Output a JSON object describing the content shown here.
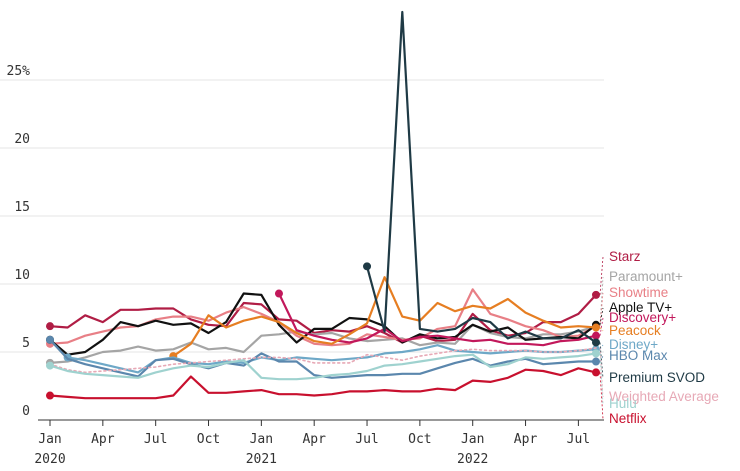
{
  "chart_data": {
    "type": "line",
    "title": "",
    "xlabel": "",
    "ylabel": "",
    "ylim": [
      0,
      30
    ],
    "y_ticks": [
      {
        "value": 0,
        "label": "0"
      },
      {
        "value": 5,
        "label": "5"
      },
      {
        "value": 10,
        "label": "10"
      },
      {
        "value": 15,
        "label": "15"
      },
      {
        "value": 20,
        "label": "20"
      },
      {
        "value": 25,
        "label": "25%"
      }
    ],
    "x_ticks": [
      {
        "index": 0,
        "label": "Jan",
        "year": "2020"
      },
      {
        "index": 3,
        "label": "Apr",
        "year": ""
      },
      {
        "index": 6,
        "label": "Jul",
        "year": ""
      },
      {
        "index": 9,
        "label": "Oct",
        "year": ""
      },
      {
        "index": 12,
        "label": "Jan",
        "year": "2021"
      },
      {
        "index": 15,
        "label": "Apr",
        "year": ""
      },
      {
        "index": 18,
        "label": "Jul",
        "year": ""
      },
      {
        "index": 21,
        "label": "Oct",
        "year": ""
      },
      {
        "index": 24,
        "label": "Jan",
        "year": "2022"
      },
      {
        "index": 27,
        "label": "Apr",
        "year": ""
      },
      {
        "index": 30,
        "label": "Jul",
        "year": ""
      }
    ],
    "x": [
      "Jan 2020",
      "Feb 2020",
      "Mar 2020",
      "Apr 2020",
      "May 2020",
      "Jun 2020",
      "Jul 2020",
      "Aug 2020",
      "Sep 2020",
      "Oct 2020",
      "Nov 2020",
      "Dec 2020",
      "Jan 2021",
      "Feb 2021",
      "Mar 2021",
      "Apr 2021",
      "May 2021",
      "Jun 2021",
      "Jul 2021",
      "Aug 2021",
      "Sep 2021",
      "Oct 2021",
      "Nov 2021",
      "Dec 2021",
      "Jan 2022",
      "Feb 2022",
      "Mar 2022",
      "Apr 2022",
      "May 2022",
      "Jun 2022",
      "Jul 2022",
      "Aug 2022"
    ],
    "grid": "horizontal",
    "legend": "right",
    "series": [
      {
        "name": "Starz",
        "color": "#b01d45",
        "dashed": false,
        "values": [
          6.9,
          6.8,
          7.7,
          7.2,
          8.1,
          8.1,
          8.2,
          8.2,
          7.4,
          7.0,
          6.9,
          8.6,
          8.5,
          7.4,
          7.3,
          6.4,
          6.6,
          6.5,
          6.9,
          6.4,
          5.7,
          6.2,
          5.8,
          5.9,
          7.8,
          6.6,
          6.2,
          6.4,
          7.2,
          7.2,
          7.8,
          9.2
        ]
      },
      {
        "name": "Paramount+",
        "color": "#a5a5a5",
        "dashed": false,
        "values": [
          4.2,
          4.3,
          4.6,
          5.0,
          5.1,
          5.4,
          5.1,
          5.2,
          5.7,
          5.2,
          5.3,
          5.0,
          6.2,
          6.3,
          6.5,
          6.3,
          6.4,
          6.0,
          5.8,
          5.9,
          6.0,
          5.5,
          5.7,
          5.6,
          7.0,
          6.4,
          6.1,
          6.0,
          6.3,
          6.3,
          6.5,
          6.9
        ]
      },
      {
        "name": "Showtime",
        "color": "#e87f86",
        "dashed": false,
        "values": [
          5.6,
          5.7,
          6.2,
          6.5,
          6.8,
          6.9,
          7.4,
          7.6,
          7.6,
          7.3,
          7.9,
          8.3,
          7.8,
          7.2,
          6.2,
          5.6,
          5.5,
          5.6,
          6.3,
          6.1,
          5.9,
          6.0,
          6.7,
          6.9,
          9.6,
          7.8,
          7.4,
          6.9,
          6.6,
          6.1,
          6.2,
          6.9
        ]
      },
      {
        "name": "Apple TV+",
        "color": "#111111",
        "dashed": false,
        "values": [
          5.9,
          4.8,
          5.0,
          5.9,
          7.2,
          6.9,
          7.3,
          7.0,
          7.1,
          6.4,
          7.2,
          9.3,
          9.2,
          7.0,
          5.7,
          6.7,
          6.7,
          7.5,
          7.4,
          6.9,
          5.7,
          6.3,
          6.0,
          6.1,
          7.0,
          6.5,
          6.8,
          5.9,
          6.0,
          6.1,
          6.0,
          7.0
        ]
      },
      {
        "name": "Discovery+",
        "color": "#c2185b",
        "dashed": false,
        "values": [
          null,
          null,
          null,
          null,
          null,
          null,
          null,
          null,
          null,
          null,
          null,
          null,
          null,
          9.3,
          6.6,
          6.2,
          5.9,
          5.7,
          6.0,
          6.7,
          5.8,
          6.1,
          6.2,
          6.0,
          5.8,
          5.9,
          5.6,
          5.6,
          5.5,
          5.8,
          5.9,
          6.2
        ]
      },
      {
        "name": "Peacock",
        "color": "#e67e22",
        "dashed": false,
        "values": [
          null,
          null,
          null,
          null,
          null,
          null,
          null,
          4.7,
          5.6,
          7.7,
          6.8,
          7.3,
          7.6,
          7.2,
          6.4,
          5.8,
          5.6,
          6.3,
          7.1,
          10.5,
          7.6,
          7.3,
          8.6,
          8.0,
          8.4,
          8.2,
          8.9,
          7.9,
          7.3,
          6.8,
          6.9,
          6.8
        ]
      },
      {
        "name": "Disney+",
        "color": "#6ea8c7",
        "dashed": false,
        "values": [
          null,
          4.6,
          4.4,
          4.1,
          3.8,
          3.5,
          4.4,
          4.6,
          4.2,
          4.1,
          4.3,
          4.2,
          4.6,
          4.4,
          4.6,
          4.5,
          4.4,
          4.5,
          4.6,
          4.9,
          5.0,
          5.2,
          5.5,
          5.1,
          5.0,
          4.9,
          5.0,
          5.1,
          5.0,
          5.0,
          5.1,
          5.2
        ]
      },
      {
        "name": "HBO Max",
        "color": "#5b87ad",
        "dashed": false,
        "values": [
          5.9,
          4.5,
          4.1,
          3.8,
          3.5,
          3.2,
          4.4,
          4.5,
          4.1,
          3.8,
          4.2,
          4.0,
          4.9,
          4.3,
          4.3,
          3.3,
          3.1,
          3.2,
          3.3,
          3.3,
          3.4,
          3.4,
          3.8,
          4.2,
          4.5,
          4.0,
          4.3,
          4.5,
          4.1,
          4.2,
          4.3,
          4.3
        ]
      },
      {
        "name": "Premium SVOD",
        "color": "#1f3a45",
        "dashed": false,
        "values": [
          null,
          null,
          null,
          null,
          null,
          null,
          null,
          null,
          null,
          null,
          null,
          null,
          null,
          null,
          null,
          null,
          null,
          null,
          11.3,
          6.5,
          30.0,
          6.7,
          6.5,
          6.7,
          7.5,
          7.2,
          6.0,
          6.5,
          6.0,
          6.0,
          6.6,
          5.7
        ]
      },
      {
        "name": "Weighted Average",
        "color": "#e7a9b6",
        "dashed": true,
        "values": [
          4.1,
          3.7,
          3.5,
          3.6,
          3.7,
          3.8,
          3.9,
          4.1,
          4.2,
          4.3,
          4.4,
          4.5,
          4.6,
          4.6,
          4.5,
          4.2,
          4.2,
          4.2,
          4.8,
          4.6,
          4.4,
          4.7,
          4.9,
          5.1,
          5.2,
          5.1,
          5.1,
          5.1,
          5.0,
          5.0,
          5.1,
          5.3
        ]
      },
      {
        "name": "Hulu",
        "color": "#9fd2cf",
        "dashed": false,
        "values": [
          4.0,
          3.6,
          3.4,
          3.3,
          3.2,
          3.1,
          3.5,
          3.8,
          4.0,
          3.9,
          4.2,
          4.4,
          3.1,
          3.0,
          3.0,
          3.1,
          3.3,
          3.4,
          3.6,
          4.0,
          4.1,
          4.3,
          4.5,
          4.7,
          4.8,
          3.9,
          4.1,
          4.6,
          4.5,
          4.6,
          4.7,
          4.9
        ]
      },
      {
        "name": "Netflix",
        "color": "#c8102e",
        "dashed": false,
        "values": [
          1.8,
          1.7,
          1.6,
          1.6,
          1.6,
          1.6,
          1.6,
          1.8,
          3.2,
          2.0,
          2.0,
          2.1,
          2.2,
          1.9,
          1.9,
          1.8,
          1.9,
          2.1,
          2.1,
          2.2,
          2.1,
          2.1,
          2.3,
          2.2,
          2.9,
          2.8,
          3.1,
          3.7,
          3.6,
          3.3,
          3.8,
          3.5
        ]
      }
    ]
  }
}
